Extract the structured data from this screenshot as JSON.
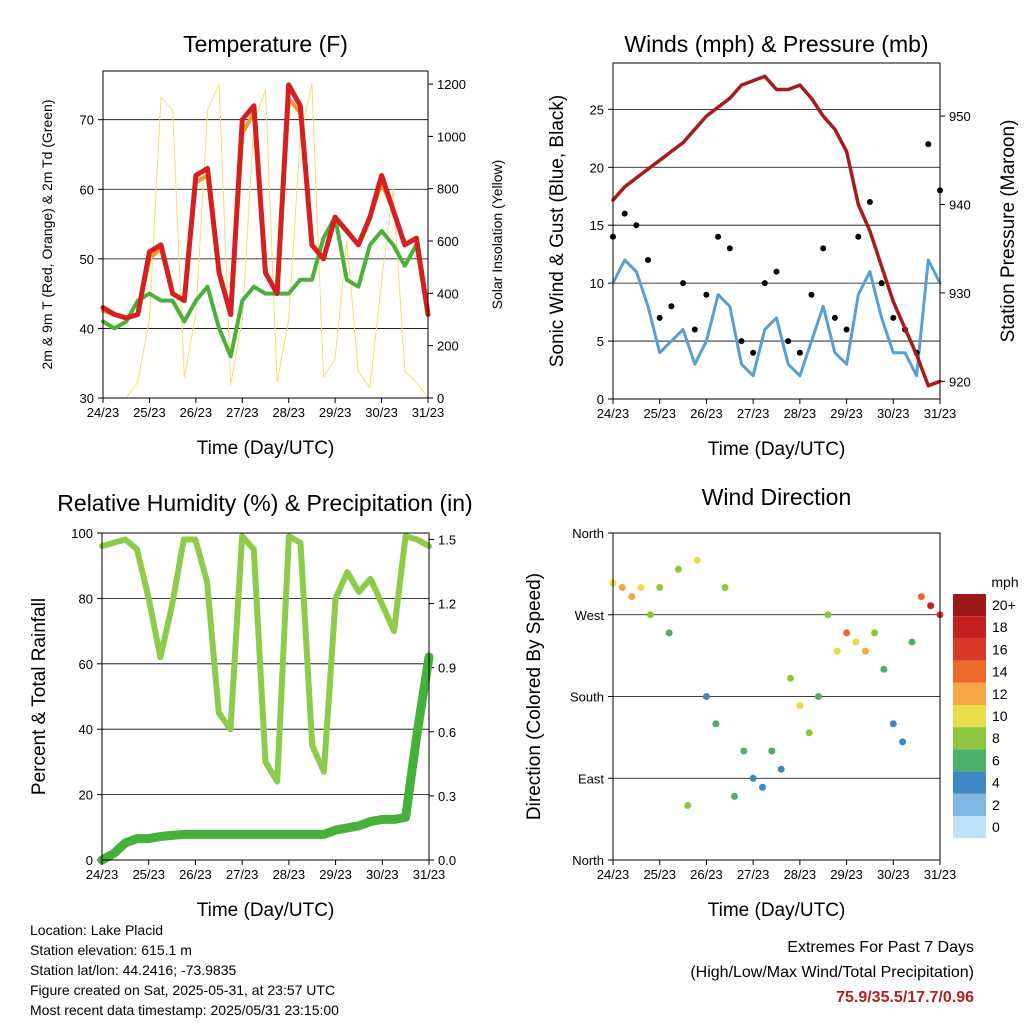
{
  "colors": {
    "red": "#d52020",
    "orange": "#f39a2a",
    "green": "#4caf3a",
    "yellow": "#f7dc6f",
    "blue": "#5a9fd4",
    "black": "#000000",
    "maroon": "#a51c1c",
    "rh_light": "#8dcc4a",
    "rain": "#45b03a",
    "extremes": "#b22222"
  },
  "x_ticks": [
    "24/23",
    "25/23",
    "26/23",
    "27/23",
    "28/23",
    "29/23",
    "30/23",
    "31/23"
  ],
  "x_label": "Time (Day/UTC)",
  "panels": {
    "temperature": {
      "title": "Temperature (F)",
      "ylabel": "2m & 9m T (Red, Orange) & 2m Td (Green)",
      "y2label": "Solar Insolation (Yellow)"
    },
    "winds": {
      "title": "Winds (mph) & Pressure (mb)",
      "ylabel": "Sonic Wind & Gust (Blue, Black)",
      "y2label": "Station Pressure (Maroon)"
    },
    "humidity": {
      "title": "Relative Humidity (%) & Precipitation (in)",
      "ylabel": "Percent & Total Rainfall"
    },
    "direction": {
      "title": "Wind Direction",
      "ylabel": "Direction (Colored By Speed)",
      "legend_title": "mph",
      "legend_labels": [
        "20+",
        "18",
        "16",
        "14",
        "12",
        "10",
        "8",
        "6",
        "4",
        "2",
        "0"
      ],
      "legend_colors": [
        "#9e1a1a",
        "#c4201f",
        "#d83a2a",
        "#ee6a2a",
        "#f6a645",
        "#e8dc48",
        "#8cc63f",
        "#4caf6a",
        "#3f86c4",
        "#7fb7e2",
        "#bfe3f6"
      ]
    }
  },
  "chart_data": [
    {
      "type": "line",
      "title": "Temperature (F)",
      "xlabel": "Time (Day/UTC)",
      "ylabel": "2m & 9m T (Red, Orange) & 2m Td (Green)",
      "y2label": "Solar Insolation (Yellow)",
      "xlim": [
        0,
        7
      ],
      "ylim": [
        30,
        77
      ],
      "y_ticks": [
        30,
        40,
        50,
        60,
        70
      ],
      "y2lim": [
        0,
        1250
      ],
      "y2_ticks": [
        0,
        200,
        400,
        600,
        800,
        1000,
        1200
      ],
      "x": [
        0,
        0.25,
        0.5,
        0.75,
        1,
        1.25,
        1.5,
        1.75,
        2,
        2.25,
        2.5,
        2.75,
        3,
        3.25,
        3.5,
        3.75,
        4,
        4.25,
        4.5,
        4.75,
        5,
        5.25,
        5.5,
        5.75,
        6,
        6.25,
        6.5,
        6.75,
        7
      ],
      "series": [
        {
          "values": [
            43,
            42,
            41.5,
            42,
            51,
            52,
            45,
            44,
            62,
            63,
            48,
            42,
            70,
            72,
            48,
            45,
            75,
            72,
            52,
            50,
            56,
            54,
            52,
            56,
            62,
            57,
            52,
            53,
            42
          ]
        },
        {
          "values": [
            42.5,
            42,
            41.5,
            42,
            50,
            51.5,
            45,
            44,
            61,
            62,
            48,
            42,
            68,
            71,
            48,
            45,
            73,
            71,
            52,
            50,
            56,
            54,
            52,
            56,
            61,
            57,
            52,
            53,
            42
          ]
        },
        {
          "values": [
            41,
            40,
            41,
            44,
            45,
            44,
            44,
            41,
            44,
            46,
            40,
            36,
            44,
            46,
            45,
            45,
            45,
            47,
            47,
            53,
            56,
            47,
            46,
            52,
            54,
            52,
            49,
            52,
            42
          ]
        },
        {
          "values": [
            0,
            0,
            0,
            60,
            300,
            1150,
            1100,
            80,
            320,
            1100,
            1200,
            50,
            300,
            1050,
            1180,
            60,
            300,
            1000,
            1200,
            80,
            150,
            600,
            100,
            40,
            450,
            800,
            100,
            60,
            0
          ]
        }
      ]
    },
    {
      "type": "line",
      "title": "Winds (mph) & Pressure (mb)",
      "xlabel": "Time (Day/UTC)",
      "ylabel": "Sonic Wind & Gust (Blue, Black)",
      "y2label": "Station Pressure (Maroon)",
      "xlim": [
        0,
        7
      ],
      "ylim": [
        0,
        29
      ],
      "y_ticks": [
        0,
        5,
        10,
        15,
        20,
        25
      ],
      "y2lim": [
        918,
        956
      ],
      "y2_ticks": [
        920,
        930,
        940,
        950
      ],
      "x": [
        0,
        0.25,
        0.5,
        0.75,
        1,
        1.25,
        1.5,
        1.75,
        2,
        2.25,
        2.5,
        2.75,
        3,
        3.25,
        3.5,
        3.75,
        4,
        4.25,
        4.5,
        4.75,
        5,
        5.25,
        5.5,
        5.75,
        6,
        6.25,
        6.5,
        6.75,
        7
      ],
      "series": [
        {
          "values": [
            10,
            12,
            11,
            8,
            4,
            5,
            6,
            3,
            5,
            9,
            8,
            3,
            2,
            6,
            7,
            3,
            2,
            5,
            8,
            4,
            3,
            9,
            11,
            7,
            4,
            4,
            2,
            12,
            10
          ]
        },
        {
          "values": [
            14,
            16,
            15,
            12,
            7,
            8,
            10,
            6,
            9,
            14,
            13,
            5,
            4,
            10,
            11,
            5,
            4,
            9,
            13,
            7,
            6,
            14,
            17,
            10,
            7,
            6,
            4,
            22,
            18
          ]
        },
        {
          "values": [
            940.5,
            942,
            943,
            944,
            945,
            946,
            947,
            948.5,
            950,
            951,
            952,
            953.5,
            954,
            954.5,
            953,
            953,
            953.5,
            952,
            950,
            948.5,
            946,
            940,
            937,
            933,
            929,
            926,
            923,
            919.5,
            920
          ]
        }
      ]
    },
    {
      "type": "line",
      "title": "Relative Humidity (%) & Precipitation (in)",
      "xlabel": "Time (Day/UTC)",
      "ylabel": "Percent & Total Rainfall",
      "xlim": [
        0,
        7
      ],
      "ylim": [
        0,
        100
      ],
      "y_ticks": [
        0,
        20,
        40,
        60,
        80,
        100
      ],
      "y2lim": [
        0,
        1.53
      ],
      "y2_ticks": [
        0.0,
        0.3,
        0.6,
        0.9,
        1.2,
        1.5
      ],
      "x": [
        0,
        0.25,
        0.5,
        0.75,
        1,
        1.25,
        1.5,
        1.75,
        2,
        2.25,
        2.5,
        2.75,
        3,
        3.25,
        3.5,
        3.75,
        4,
        4.25,
        4.5,
        4.75,
        5,
        5.25,
        5.5,
        5.75,
        6,
        6.25,
        6.5,
        6.75,
        7
      ],
      "series": [
        {
          "values": [
            96,
            97,
            98,
            95,
            80,
            62,
            78,
            98,
            98,
            85,
            45,
            40,
            99,
            95,
            30,
            24,
            99,
            97,
            35,
            27,
            80,
            88,
            82,
            86,
            78,
            70,
            99,
            98,
            96
          ]
        },
        {
          "values": [
            0,
            0.03,
            0.08,
            0.1,
            0.1,
            0.11,
            0.115,
            0.12,
            0.12,
            0.12,
            0.12,
            0.12,
            0.12,
            0.12,
            0.12,
            0.12,
            0.12,
            0.12,
            0.12,
            0.12,
            0.14,
            0.15,
            0.16,
            0.18,
            0.19,
            0.19,
            0.2,
            0.6,
            0.95
          ]
        }
      ]
    },
    {
      "type": "scatter",
      "title": "Wind Direction",
      "xlabel": "Time (Day/UTC)",
      "ylabel": "Direction (Colored By Speed)",
      "xlim": [
        0,
        7
      ],
      "y_categories": [
        "North",
        "East",
        "South",
        "West",
        "North"
      ],
      "ylim": [
        0,
        360
      ],
      "legend_title": "mph",
      "legend_labels": [
        "20+",
        "18",
        "16",
        "14",
        "12",
        "10",
        "8",
        "6",
        "4",
        "2",
        "0"
      ],
      "x": [
        0,
        0.2,
        0.4,
        0.6,
        0.8,
        1.0,
        1.2,
        1.4,
        1.6,
        1.8,
        2.0,
        2.2,
        2.4,
        2.6,
        2.8,
        3.0,
        3.2,
        3.4,
        3.6,
        3.8,
        4.0,
        4.2,
        4.4,
        4.6,
        4.8,
        5.0,
        5.2,
        5.4,
        5.6,
        5.8,
        6.0,
        6.2,
        6.4,
        6.6,
        6.8,
        7.0
      ],
      "series": [
        {
          "name": "direction",
          "values": [
            305,
            300,
            290,
            300,
            270,
            300,
            250,
            320,
            60,
            330,
            180,
            150,
            300,
            70,
            120,
            90,
            80,
            120,
            100,
            200,
            170,
            140,
            180,
            270,
            230,
            250,
            240,
            230,
            250,
            210,
            150,
            130,
            240,
            290,
            280,
            270
          ]
        },
        {
          "name": "speed",
          "values": [
            10,
            11,
            12,
            9,
            8,
            8,
            6,
            8,
            7,
            9,
            4,
            5,
            8,
            6,
            5,
            4,
            3,
            5,
            4,
            8,
            10,
            7,
            5,
            7,
            9,
            14,
            10,
            12,
            8,
            6,
            4,
            3,
            5,
            14,
            18,
            16
          ]
        }
      ]
    }
  ],
  "footer": {
    "location": "Location: Lake Placid",
    "elevation": "Station elevation: 615.1 m",
    "latlon": "Station lat/lon: 44.2416; -73.9835",
    "created": "Figure created on Sat, 2025-05-31, at 23:57 UTC",
    "recent": "Most recent data timestamp: 2025/05/31 23:15:00",
    "extremes_title": "Extremes For Past 7 Days",
    "extremes_sub": "(High/Low/Max Wind/Total Precipitation)",
    "extremes_value": "75.9/35.5/17.7/0.96"
  }
}
